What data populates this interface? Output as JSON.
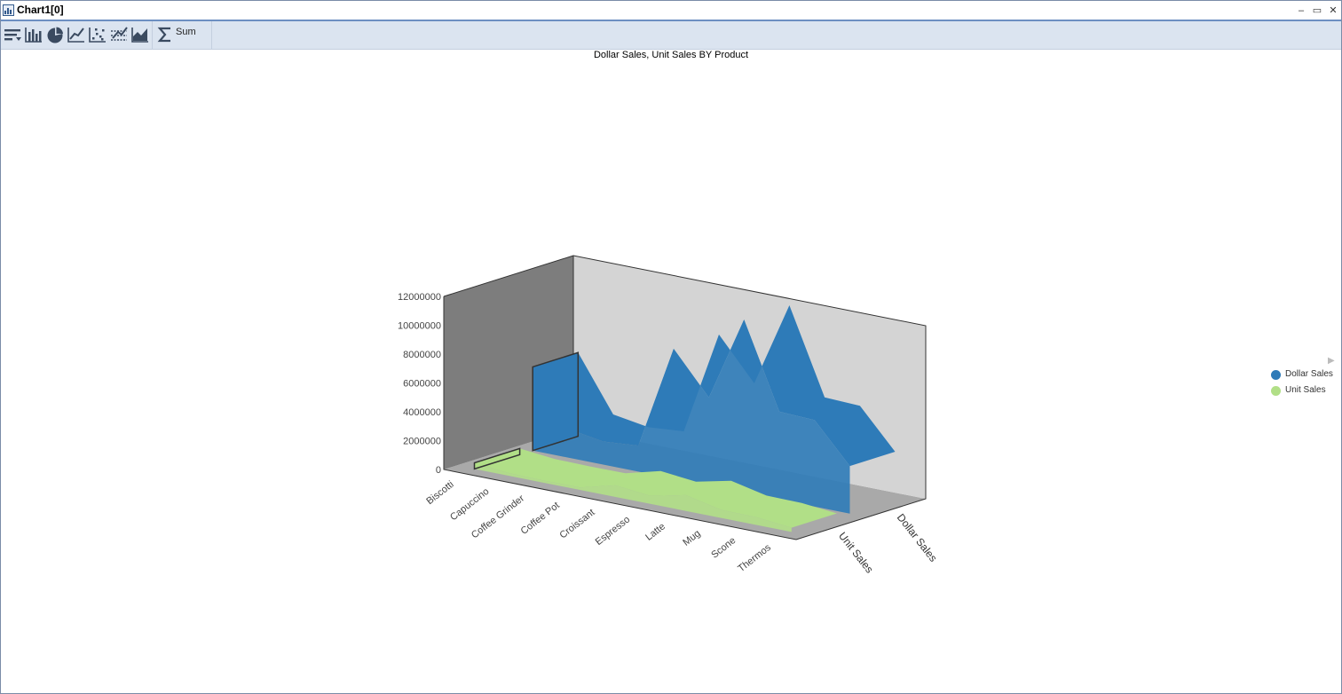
{
  "window": {
    "title": "Chart1[0]"
  },
  "window_controls": {
    "minimize": "–",
    "restore": "▭",
    "close": "✕"
  },
  "toolbar": {
    "buttons": [
      "sort-icon",
      "bar-chart-icon",
      "pie-chart-icon",
      "line-chart-icon",
      "scatter-chart-icon",
      "multi-line-icon",
      "area-chart-icon",
      "sigma-icon"
    ],
    "sum_label": "Sum"
  },
  "colors": {
    "dollar_sales": "#2e7bb8",
    "unit_sales": "#b1df87",
    "back_wall": "#d4d4d4",
    "side_wall": "#7d7d7d",
    "floor": "#a9a9a9"
  },
  "chart_data": {
    "type": "area",
    "title": "Dollar Sales, Unit Sales BY Product",
    "categories": [
      "Biscotti",
      "Capuccino",
      "Coffee Grinder",
      "Coffee Pot",
      "Croissant",
      "Espresso",
      "Latte",
      "Mug",
      "Scone",
      "Thermos"
    ],
    "series_axis": [
      "Unit Sales",
      "Dollar Sales"
    ],
    "ylim": [
      0,
      12000000
    ],
    "yticks": [
      "0",
      "2000000",
      "4000000",
      "6000000",
      "8000000",
      "10000000",
      "12000000"
    ],
    "series": [
      {
        "name": "Dollar Sales",
        "values": [
          5800000,
          2000000,
          1600000,
          1800000,
          9000000,
          6100000,
          12000000,
          6100000,
          6000000,
          3300000
        ]
      },
      {
        "name": "Unit Sales",
        "values": [
          420000,
          180000,
          150000,
          170000,
          800000,
          550000,
          1100000,
          560000,
          540000,
          300000
        ]
      }
    ],
    "legend_position": "right"
  }
}
